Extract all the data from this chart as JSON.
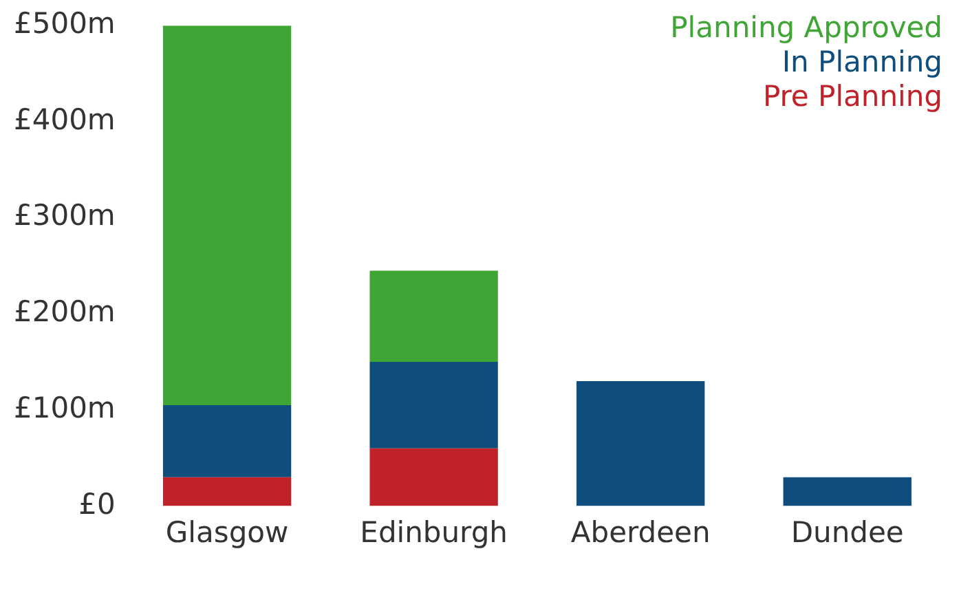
{
  "chart_data": {
    "type": "bar",
    "stacked": true,
    "categories": [
      "Glasgow",
      "Edinburgh",
      "Aberdeen",
      "Dundee"
    ],
    "series": [
      {
        "name": "Pre Planning",
        "color": "#c0222a",
        "values": [
          30,
          60,
          null,
          null
        ]
      },
      {
        "name": "In Planning",
        "color": "#0e4d7c",
        "values": [
          75,
          90,
          130,
          30
        ]
      },
      {
        "name": "Planning Approved",
        "color": "#3fa535",
        "values": [
          395,
          95,
          null,
          null
        ]
      }
    ],
    "ylim": [
      0,
      500
    ],
    "yticks": [
      {
        "value": 0,
        "label": "£0"
      },
      {
        "value": 100,
        "label": "£100m"
      },
      {
        "value": 200,
        "label": "£200m"
      },
      {
        "value": 300,
        "label": "£300m"
      },
      {
        "value": 400,
        "label": "£400m"
      },
      {
        "value": 500,
        "label": "£500m"
      }
    ],
    "grid": false,
    "legend": "top right"
  }
}
